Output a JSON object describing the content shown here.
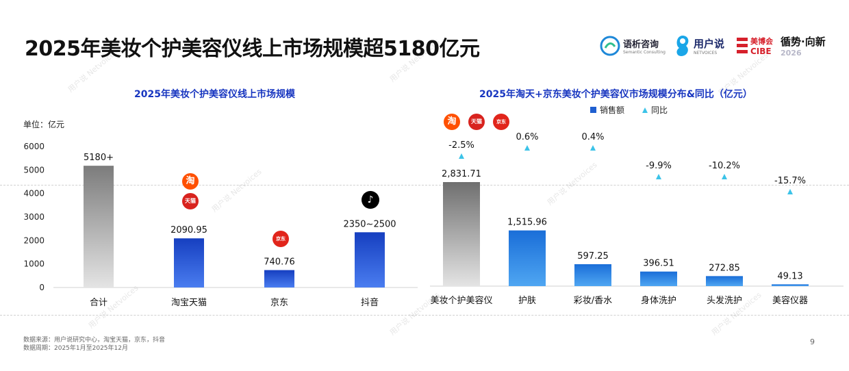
{
  "page": {
    "title": "2025年美妆个护美容仪线上市场规模超5180亿元",
    "page_number": "9"
  },
  "logos": {
    "semantic_name": "语析咨询",
    "semantic_sub": "Semantic Consulting",
    "netvoices_name": "用户说",
    "netvoices_sub": "NETVOICES",
    "cibe_name": "美博会",
    "cibe_sub": "CIBE",
    "forum_name": "循势·向新",
    "forum_year": "2026"
  },
  "footer": {
    "source": "数据来源：用户说研究中心，淘宝天猫，京东，抖音",
    "period": "数据周期：2025年1月至2025年12月"
  },
  "left_chart": {
    "title": "2025年美妆个护美容仪线上市场规模",
    "unit_label": "单位：亿元",
    "y_ticks": [
      "0",
      "1000",
      "2000",
      "3000",
      "4000",
      "5000",
      "6000"
    ],
    "platform_icons": {
      "taobao": "淘",
      "tmall": "天猫",
      "jd": "京东",
      "douyin": "♪"
    }
  },
  "right_chart": {
    "title": "2025年淘天+京东美妆个护美容仪市场规模分布&同比（亿元）",
    "legend_sales": "销售额",
    "legend_yoy": "同比",
    "platform_icons": {
      "taobao": "淘",
      "tmall": "天猫",
      "jd": "京东"
    }
  },
  "chart_data": [
    {
      "type": "bar",
      "title": "2025年美妆个护美容仪线上市场规模",
      "ylabel": "单位：亿元",
      "ylim": [
        0,
        6000
      ],
      "grid": false,
      "categories": [
        "合计",
        "淘宝天猫",
        "京东",
        "抖音"
      ],
      "values": [
        5180,
        2090.95,
        740.76,
        2350
      ],
      "data_labels": [
        "5180+",
        "2090.95",
        "740.76",
        "2350~2500"
      ]
    },
    {
      "type": "bar",
      "title": "2025年淘天+京东美妆个护美容仪市场规模分布&同比（亿元）",
      "legend": "top-center",
      "categories": [
        "美妆个护美容仪",
        "护肤",
        "彩妆/香水",
        "身体洗护",
        "头发洗护",
        "美容仪器"
      ],
      "series": [
        {
          "name": "销售额",
          "values": [
            2831.71,
            1515.96,
            597.25,
            396.51,
            272.85,
            49.13
          ],
          "data_labels": [
            "2,831.71",
            "1,515.96",
            "597.25",
            "396.51",
            "272.85",
            "49.13"
          ]
        },
        {
          "name": "同比",
          "type": "scatter",
          "values": [
            -2.5,
            0.6,
            0.4,
            -9.9,
            -10.2,
            -15.7
          ],
          "data_labels": [
            "-2.5%",
            "0.6%",
            "0.4%",
            "-9.9%",
            "-10.2%",
            "-15.7%"
          ]
        }
      ]
    }
  ]
}
